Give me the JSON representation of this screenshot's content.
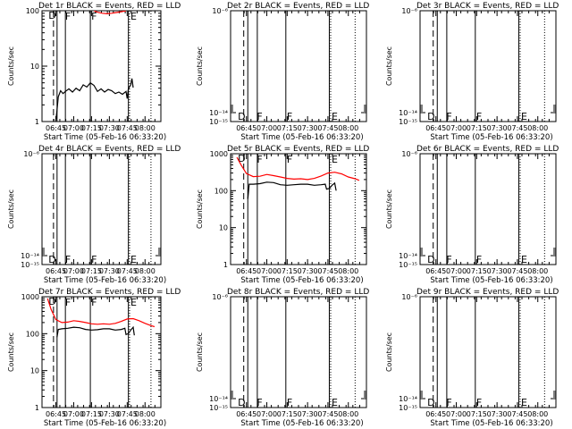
{
  "figure": {
    "xlabel": "Start Time (05-Feb-16 06:33:20)",
    "ylabel": "Counts/sec",
    "time_ticks": [
      "06:45",
      "07:00",
      "07:15",
      "07:30",
      "07:45",
      "08:00"
    ]
  },
  "chart_data": [
    {
      "type": "line",
      "title": "Det 1r  BLACK = Events, RED = LLD",
      "ylog": true,
      "ylim": [
        1,
        100
      ],
      "yticks": [
        {
          "v": 1,
          "label": "1"
        },
        {
          "v": 10,
          "label": "10"
        },
        {
          "v": 100,
          "label": "100"
        }
      ],
      "markers": [
        {
          "letter": "D",
          "x": "06:38"
        },
        {
          "letter": "F",
          "x": "06:52"
        },
        {
          "letter": "F",
          "x": "07:14"
        },
        {
          "letter": "E",
          "x": "07:47"
        }
      ],
      "dash_line": "06:43",
      "solid_lines": [
        "06:46",
        "06:53",
        "07:14",
        "07:46"
      ],
      "dotted_lines": [
        "07:47",
        "08:05"
      ],
      "series": [
        {
          "name": "Events",
          "color": "#000000",
          "points": [
            [
              "06:45",
              1.05
            ],
            [
              "06:46",
              1.6
            ],
            [
              "06:47",
              2.8
            ],
            [
              "06:49",
              3.6
            ],
            [
              "06:51",
              3.2
            ],
            [
              "06:53",
              3.5
            ],
            [
              "06:56",
              3.9
            ],
            [
              "06:59",
              3.4
            ],
            [
              "07:02",
              4.0
            ],
            [
              "07:05",
              3.6
            ],
            [
              "07:08",
              4.6
            ],
            [
              "07:11",
              4.2
            ],
            [
              "07:14",
              5.0
            ],
            [
              "07:17",
              4.5
            ],
            [
              "07:20",
              3.5
            ],
            [
              "07:23",
              3.9
            ],
            [
              "07:26",
              3.4
            ],
            [
              "07:29",
              3.8
            ],
            [
              "07:32",
              3.6
            ],
            [
              "07:35",
              3.2
            ],
            [
              "07:38",
              3.4
            ],
            [
              "07:41",
              3.1
            ],
            [
              "07:44",
              3.5
            ],
            [
              "07:45",
              2.6
            ],
            [
              "07:46",
              3.9
            ],
            [
              "07:48",
              4.6
            ],
            [
              "07:49",
              6.0
            ],
            [
              "07:50",
              4.1
            ]
          ]
        },
        {
          "name": "LLD",
          "color": "#ff0000",
          "points": [
            [
              "07:17",
              100
            ],
            [
              "07:20",
              94
            ],
            [
              "07:24",
              90
            ],
            [
              "07:28",
              88
            ],
            [
              "07:32",
              90
            ],
            [
              "07:36",
              93
            ],
            [
              "07:40",
              96
            ],
            [
              "07:44",
              100
            ]
          ]
        }
      ]
    },
    {
      "type": "line",
      "title": "Det 2r  BLACK = Events, RED = LLD",
      "ylog": true,
      "ylim": [
        1e-06,
        1e-15
      ],
      "yticks": [
        {
          "v": -15,
          "label": "10⁻¹⁵"
        },
        {
          "v": -14,
          "label": "10⁻¹⁴"
        },
        {
          "v": -6,
          "label": "10⁻⁶"
        }
      ],
      "markers": [
        {
          "letter": "D",
          "x": "06:38"
        },
        {
          "letter": "F",
          "x": "06:52"
        },
        {
          "letter": "F",
          "x": "07:14"
        },
        {
          "letter": "E",
          "x": "07:47"
        }
      ],
      "dash_line": "06:43",
      "solid_lines": [
        "06:46",
        "06:53",
        "07:14",
        "07:46"
      ],
      "dotted_lines": [
        "07:47",
        "08:05"
      ],
      "series": []
    },
    {
      "type": "line",
      "title": "Det 3r  BLACK = Events, RED = LLD",
      "ylog": true,
      "ylim": [
        1e-06,
        1e-15
      ],
      "yticks": [
        {
          "v": -15,
          "label": "10⁻¹⁵"
        },
        {
          "v": -14,
          "label": "10⁻¹⁴"
        },
        {
          "v": -6,
          "label": "10⁻⁶"
        }
      ],
      "markers": [
        {
          "letter": "D",
          "x": "06:38"
        },
        {
          "letter": "F",
          "x": "06:52"
        },
        {
          "letter": "F",
          "x": "07:14"
        },
        {
          "letter": "E",
          "x": "07:47"
        }
      ],
      "dash_line": "06:43",
      "solid_lines": [
        "06:46",
        "06:53",
        "07:14",
        "07:46"
      ],
      "dotted_lines": [
        "07:47",
        "08:05"
      ],
      "series": []
    },
    {
      "type": "line",
      "title": "Det 4r  BLACK = Events, RED = LLD",
      "ylog": true,
      "ylim": [
        1e-06,
        1e-15
      ],
      "yticks": [
        {
          "v": -15,
          "label": "10⁻¹⁵"
        },
        {
          "v": -14,
          "label": "10⁻¹⁴"
        },
        {
          "v": -6,
          "label": "10⁻⁶"
        }
      ],
      "markers": [
        {
          "letter": "D",
          "x": "06:38"
        },
        {
          "letter": "F",
          "x": "06:52"
        },
        {
          "letter": "F",
          "x": "07:14"
        },
        {
          "letter": "E",
          "x": "07:47"
        }
      ],
      "dash_line": "06:43",
      "solid_lines": [
        "06:46",
        "06:53",
        "07:14",
        "07:46"
      ],
      "dotted_lines": [
        "07:47",
        "08:05"
      ],
      "series": []
    },
    {
      "type": "line",
      "title": "Det 5r  BLACK = Events, RED = LLD",
      "ylog": true,
      "ylim": [
        1,
        1000
      ],
      "yticks": [
        {
          "v": 1,
          "label": "1"
        },
        {
          "v": 10,
          "label": "10"
        },
        {
          "v": 100,
          "label": "100"
        },
        {
          "v": 1000,
          "label": "1000"
        }
      ],
      "markers": [
        {
          "letter": "D",
          "x": "06:38"
        },
        {
          "letter": "F",
          "x": "06:52"
        },
        {
          "letter": "F",
          "x": "07:14"
        },
        {
          "letter": "E",
          "x": "07:47"
        }
      ],
      "dash_line": "06:43",
      "solid_lines": [
        "06:46",
        "06:53",
        "07:14",
        "07:46"
      ],
      "dotted_lines": [
        "07:47",
        "08:05"
      ],
      "series": [
        {
          "name": "Events",
          "color": "#000000",
          "points": [
            [
              "06:46",
              60
            ],
            [
              "06:47",
              150
            ],
            [
              "06:50",
              150
            ],
            [
              "06:55",
              155
            ],
            [
              "07:00",
              170
            ],
            [
              "07:05",
              165
            ],
            [
              "07:10",
              145
            ],
            [
              "07:15",
              140
            ],
            [
              "07:20",
              145
            ],
            [
              "07:25",
              150
            ],
            [
              "07:30",
              150
            ],
            [
              "07:35",
              140
            ],
            [
              "07:40",
              145
            ],
            [
              "07:43",
              150
            ],
            [
              "07:44",
              110
            ],
            [
              "07:46",
              115
            ],
            [
              "07:48",
              140
            ],
            [
              "07:50",
              160
            ],
            [
              "07:51",
              100
            ]
          ]
        },
        {
          "name": "LLD",
          "color": "#ff0000",
          "points": [
            [
              "06:38",
              800
            ],
            [
              "06:41",
              500
            ],
            [
              "06:45",
              290
            ],
            [
              "06:50",
              240
            ],
            [
              "06:55",
              245
            ],
            [
              "07:00",
              275
            ],
            [
              "07:05",
              255
            ],
            [
              "07:10",
              235
            ],
            [
              "07:15",
              215
            ],
            [
              "07:20",
              205
            ],
            [
              "07:25",
              210
            ],
            [
              "07:30",
              200
            ],
            [
              "07:35",
              215
            ],
            [
              "07:40",
              250
            ],
            [
              "07:45",
              300
            ],
            [
              "07:50",
              315
            ],
            [
              "07:55",
              285
            ],
            [
              "08:00",
              235
            ],
            [
              "08:05",
              210
            ],
            [
              "08:08",
              190
            ]
          ]
        }
      ]
    },
    {
      "type": "line",
      "title": "Det 6r  BLACK = Events, RED = LLD",
      "ylog": true,
      "ylim": [
        1e-06,
        1e-15
      ],
      "yticks": [
        {
          "v": -15,
          "label": "10⁻¹⁵"
        },
        {
          "v": -14,
          "label": "10⁻¹⁴"
        },
        {
          "v": -6,
          "label": "10⁻⁶"
        }
      ],
      "markers": [
        {
          "letter": "D",
          "x": "06:38"
        },
        {
          "letter": "F",
          "x": "06:52"
        },
        {
          "letter": "F",
          "x": "07:14"
        },
        {
          "letter": "E",
          "x": "07:47"
        }
      ],
      "dash_line": "06:43",
      "solid_lines": [
        "06:46",
        "06:53",
        "07:14",
        "07:46"
      ],
      "dotted_lines": [
        "07:47",
        "08:05"
      ],
      "series": []
    },
    {
      "type": "line",
      "title": "Det 7r  BLACK = Events, RED = LLD",
      "ylog": true,
      "ylim": [
        1,
        1000
      ],
      "yticks": [
        {
          "v": 1,
          "label": "1"
        },
        {
          "v": 10,
          "label": "10"
        },
        {
          "v": 100,
          "label": "100"
        },
        {
          "v": 1000,
          "label": "1000"
        }
      ],
      "markers": [
        {
          "letter": "D",
          "x": "06:38"
        },
        {
          "letter": "F",
          "x": "06:52"
        },
        {
          "letter": "F",
          "x": "07:14"
        },
        {
          "letter": "E",
          "x": "07:47"
        }
      ],
      "dash_line": "06:43",
      "solid_lines": [
        "06:46",
        "06:53",
        "07:14",
        "07:46"
      ],
      "dotted_lines": [
        "07:47",
        "08:05"
      ],
      "series": [
        {
          "name": "Events",
          "color": "#000000",
          "points": [
            [
              "06:46",
              80
            ],
            [
              "06:47",
              130
            ],
            [
              "06:50",
              135
            ],
            [
              "06:55",
              140
            ],
            [
              "07:00",
              150
            ],
            [
              "07:05",
              145
            ],
            [
              "07:10",
              130
            ],
            [
              "07:15",
              125
            ],
            [
              "07:20",
              128
            ],
            [
              "07:25",
              135
            ],
            [
              "07:30",
              135
            ],
            [
              "07:35",
              125
            ],
            [
              "07:40",
              130
            ],
            [
              "07:43",
              140
            ],
            [
              "07:44",
              95
            ],
            [
              "07:46",
              100
            ],
            [
              "07:48",
              125
            ],
            [
              "07:50",
              150
            ],
            [
              "07:51",
              90
            ]
          ]
        },
        {
          "name": "LLD",
          "color": "#ff0000",
          "points": [
            [
              "06:38",
              900
            ],
            [
              "06:41",
              450
            ],
            [
              "06:45",
              240
            ],
            [
              "06:50",
              200
            ],
            [
              "06:55",
              205
            ],
            [
              "07:00",
              225
            ],
            [
              "07:05",
              215
            ],
            [
              "07:10",
              200
            ],
            [
              "07:15",
              185
            ],
            [
              "07:20",
              180
            ],
            [
              "07:25",
              185
            ],
            [
              "07:30",
              180
            ],
            [
              "07:35",
              190
            ],
            [
              "07:40",
              215
            ],
            [
              "07:45",
              250
            ],
            [
              "07:50",
              255
            ],
            [
              "07:55",
              225
            ],
            [
              "08:00",
              190
            ],
            [
              "08:05",
              165
            ],
            [
              "08:08",
              155
            ]
          ]
        }
      ]
    },
    {
      "type": "line",
      "title": "Det 8r  BLACK = Events, RED = LLD",
      "ylog": true,
      "ylim": [
        1e-06,
        1e-15
      ],
      "yticks": [
        {
          "v": -15,
          "label": "10⁻¹⁵"
        },
        {
          "v": -14,
          "label": "10⁻¹⁴"
        },
        {
          "v": -6,
          "label": "10⁻⁶"
        }
      ],
      "markers": [
        {
          "letter": "D",
          "x": "06:38"
        },
        {
          "letter": "F",
          "x": "06:52"
        },
        {
          "letter": "F",
          "x": "07:14"
        },
        {
          "letter": "E",
          "x": "07:47"
        }
      ],
      "dash_line": "06:43",
      "solid_lines": [
        "06:46",
        "06:53",
        "07:14",
        "07:46"
      ],
      "dotted_lines": [
        "07:47",
        "08:05"
      ],
      "series": []
    },
    {
      "type": "line",
      "title": "Det 9r  BLACK = Events, RED = LLD",
      "ylog": true,
      "ylim": [
        1e-06,
        1e-15
      ],
      "yticks": [
        {
          "v": -15,
          "label": "10⁻¹⁵"
        },
        {
          "v": -14,
          "label": "10⁻¹⁴"
        },
        {
          "v": -6,
          "label": "10⁻⁶"
        }
      ],
      "markers": [
        {
          "letter": "D",
          "x": "06:38"
        },
        {
          "letter": "F",
          "x": "06:52"
        },
        {
          "letter": "F",
          "x": "07:14"
        },
        {
          "letter": "E",
          "x": "07:47"
        }
      ],
      "dash_line": "06:43",
      "solid_lines": [
        "06:46",
        "06:53",
        "07:14",
        "07:46"
      ],
      "dotted_lines": [
        "07:47",
        "08:05"
      ],
      "series": []
    }
  ]
}
